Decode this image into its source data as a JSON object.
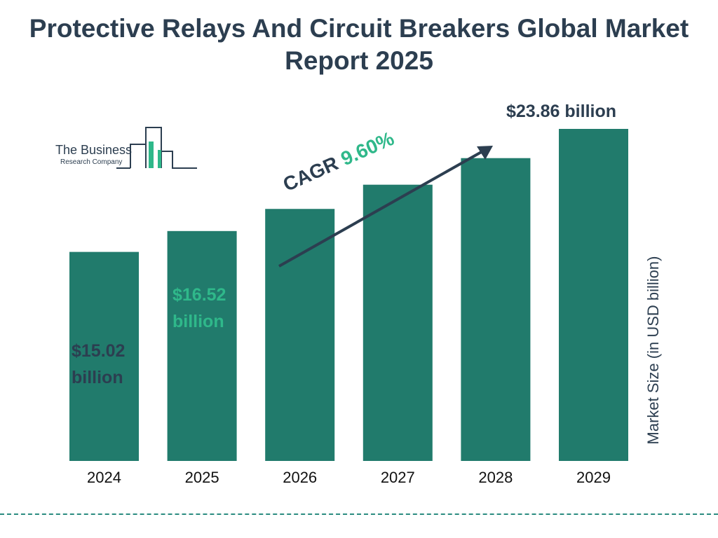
{
  "title": "Protective Relays And Circuit Breakers Global Market Report 2025",
  "logo": {
    "line1": "The Business",
    "line2": "Research Company"
  },
  "cagr": {
    "label": "CAGR",
    "value": "9.60%"
  },
  "value_labels": {
    "y2024": "$15.02 billion",
    "y2025": "$16.52 billion",
    "y2029": "$23.86 billion"
  },
  "colors": {
    "bar": "#217b6c",
    "dark_text": "#2c3e50",
    "accent_green": "#2fb88a"
  },
  "chart_data": {
    "type": "bar",
    "title": "Protective Relays And Circuit Breakers Global Market Report 2025",
    "categories": [
      "2024",
      "2025",
      "2026",
      "2027",
      "2028",
      "2029"
    ],
    "values": [
      15.02,
      16.52,
      18.11,
      19.85,
      21.76,
      23.86
    ],
    "xlabel": "",
    "ylabel": "Market Size (in USD billion)",
    "grid": false,
    "legend": "none"
  }
}
